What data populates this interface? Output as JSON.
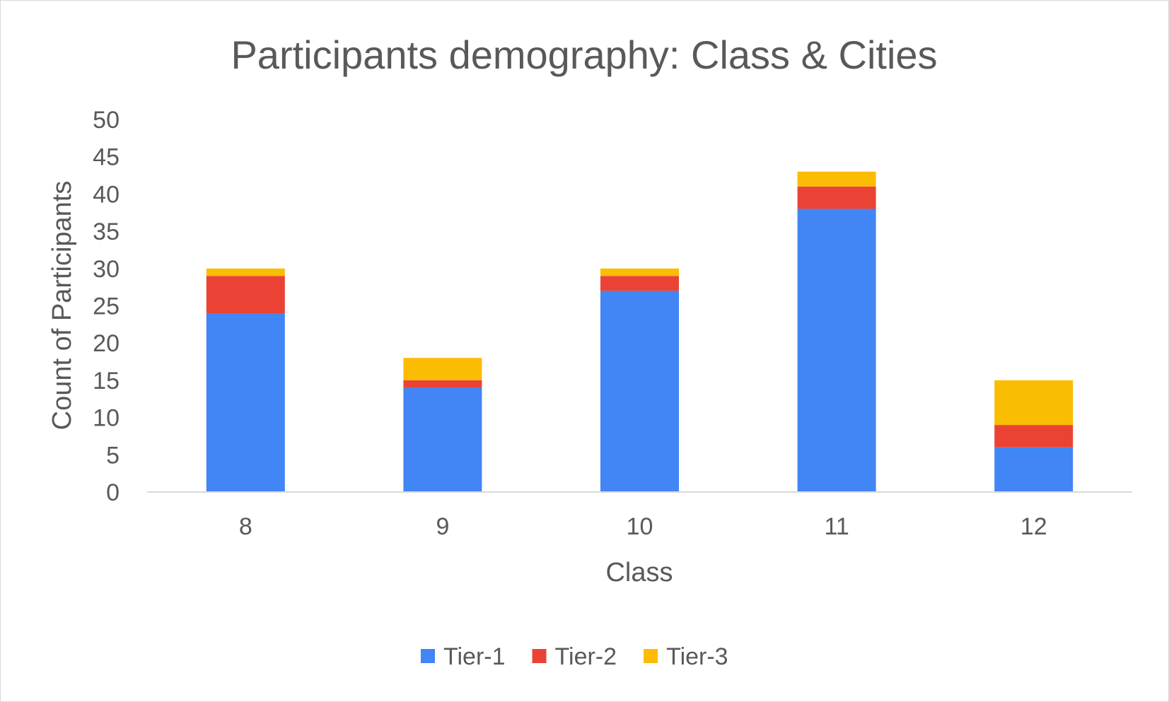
{
  "chart_data": {
    "type": "bar",
    "stacked": true,
    "title": "Participants demography: Class & Cities",
    "xlabel": "Class",
    "ylabel": "Count of Participants",
    "categories": [
      "8",
      "9",
      "10",
      "11",
      "12"
    ],
    "series": [
      {
        "name": "Tier-1",
        "color": "#4285F4",
        "values": [
          24,
          14,
          27,
          38,
          6
        ]
      },
      {
        "name": "Tier-2",
        "color": "#EA4335",
        "values": [
          5,
          1,
          2,
          3,
          3
        ]
      },
      {
        "name": "Tier-3",
        "color": "#FBBC04",
        "values": [
          1,
          3,
          1,
          2,
          6
        ]
      }
    ],
    "ylim": [
      0,
      50
    ],
    "yticks": [
      "0",
      "5",
      "10",
      "15",
      "20",
      "25",
      "30",
      "35",
      "40",
      "45",
      "50"
    ],
    "grid": false,
    "legend_position": "bottom"
  }
}
